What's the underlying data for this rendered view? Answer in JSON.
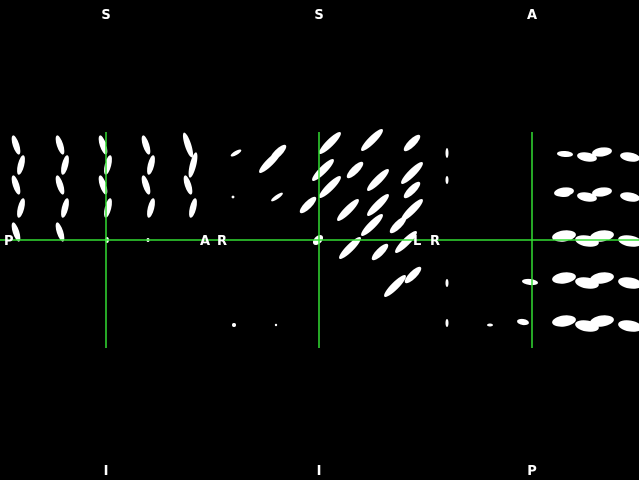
{
  "viewer": {
    "background_color": "#000000",
    "crosshair_color": "#33dd33",
    "glyph_color": "#ffffff",
    "panels": [
      {
        "name": "sagittal",
        "labels": {
          "top": "S",
          "bottom": "I",
          "left": "P",
          "right": "A"
        }
      },
      {
        "name": "coronal",
        "labels": {
          "top": "S",
          "bottom": "I",
          "left": "R",
          "right": "L"
        }
      },
      {
        "name": "axial",
        "labels": {
          "top": "A",
          "bottom": "P",
          "left": "R",
          "right": ""
        }
      }
    ]
  }
}
